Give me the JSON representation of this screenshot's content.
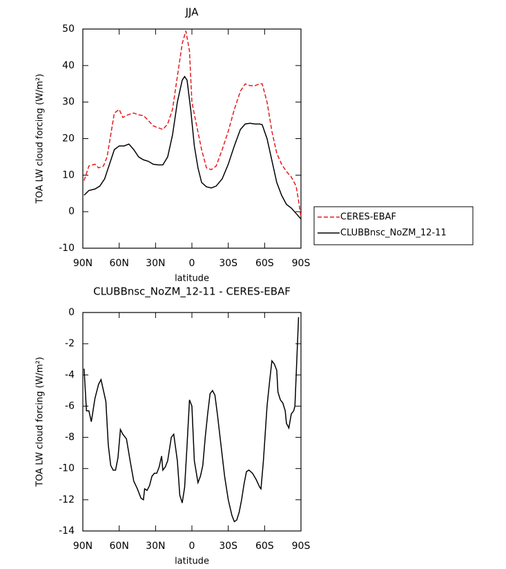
{
  "chart_data": [
    {
      "type": "line",
      "title": "JJA",
      "xlabel": "latitude",
      "ylabel": "TOA LW cloud forcing (W/m²)",
      "xlim": [
        90,
        -90
      ],
      "xticks": [
        {
          "value": 90,
          "label": "90N"
        },
        {
          "value": 60,
          "label": "60N"
        },
        {
          "value": 30,
          "label": "30N"
        },
        0,
        {
          "value": -30,
          "label": "30S"
        },
        {
          "value": -60,
          "label": "60S"
        },
        {
          "value": -90,
          "label": "90S"
        }
      ],
      "ylim": [
        -10,
        50
      ],
      "yticks": [
        -10,
        0,
        10,
        20,
        30,
        40,
        50
      ],
      "legend": "right",
      "series": [
        {
          "name": "CERES-EBAF",
          "color": "#e31a1c",
          "dash": "dashed",
          "x": [
            89,
            85,
            80,
            77,
            73,
            70,
            67,
            64,
            60,
            57,
            53,
            48,
            44,
            40,
            36,
            32,
            28,
            24,
            20,
            16,
            12,
            8,
            5,
            2,
            0,
            -3,
            -8,
            -12,
            -16,
            -20,
            -25,
            -30,
            -35,
            -40,
            -44,
            -48,
            -52,
            -56,
            -58,
            -62,
            -66,
            -70,
            -74,
            -78,
            -82,
            -86,
            -88,
            -90
          ],
          "values": [
            8.5,
            12.5,
            13,
            12,
            12.5,
            15,
            21,
            27,
            28,
            25.8,
            26.5,
            27,
            26.5,
            26.3,
            25,
            23.5,
            23,
            22.5,
            24,
            28,
            37,
            46,
            49.5,
            44,
            30,
            25,
            17,
            12,
            11.5,
            12.5,
            17,
            22,
            28,
            33,
            35,
            34.5,
            34.5,
            35,
            35,
            30,
            22,
            16,
            13,
            11,
            9.5,
            7,
            3,
            -1.5
          ]
        },
        {
          "name": "CLUBBnsc_NoZM_12-11",
          "color": "#000000",
          "dash": "solid",
          "x": [
            89,
            85,
            80,
            76,
            72,
            68,
            64,
            60,
            56,
            52,
            48,
            44,
            40,
            36,
            32,
            28,
            24,
            20,
            16,
            12,
            8,
            6,
            4,
            1,
            -2,
            -5,
            -8,
            -12,
            -16,
            -20,
            -25,
            -30,
            -35,
            -40,
            -44,
            -48,
            -52,
            -56,
            -58,
            -62,
            -66,
            -70,
            -74,
            -78,
            -82,
            -86,
            -90
          ],
          "values": [
            4.5,
            5.8,
            6.2,
            7,
            9,
            13,
            17,
            18,
            18,
            18.5,
            17,
            15,
            14.2,
            13.8,
            13,
            12.8,
            12.8,
            15,
            21,
            30,
            36,
            37,
            36,
            28,
            18,
            12,
            8,
            6.8,
            6.5,
            7,
            9,
            13,
            18,
            22.5,
            24,
            24.2,
            24,
            24,
            23.8,
            20,
            14,
            8,
            4.5,
            2,
            1,
            -0.5,
            -2
          ]
        }
      ]
    },
    {
      "type": "line",
      "title": "CLUBBnsc_NoZM_12-11 - CERES-EBAF",
      "xlabel": "latitude",
      "ylabel": "TOA LW cloud forcing (W/m²)",
      "xlim": [
        90,
        -90
      ],
      "xticks": [
        {
          "value": 90,
          "label": "90N"
        },
        {
          "value": 60,
          "label": "60N"
        },
        {
          "value": 30,
          "label": "30N"
        },
        0,
        {
          "value": -30,
          "label": "30S"
        },
        {
          "value": -60,
          "label": "60S"
        },
        {
          "value": -90,
          "label": "90S"
        }
      ],
      "ylim": [
        -14,
        0
      ],
      "yticks": [
        -14,
        -12,
        -10,
        -8,
        -6,
        -4,
        -2,
        0
      ],
      "series": [
        {
          "color": "#000000",
          "dash": "solid",
          "x": [
            89,
            87,
            85,
            83,
            80,
            77,
            75,
            71,
            69,
            67,
            65,
            63,
            61,
            59,
            57,
            54,
            51,
            48,
            45,
            42,
            40,
            39,
            37,
            35,
            33,
            31,
            29,
            27,
            25,
            24,
            22,
            20,
            17,
            15,
            12,
            10,
            8,
            6,
            4,
            2,
            0,
            -2,
            -5,
            -7,
            -9,
            -11,
            -13,
            -15,
            -17,
            -19,
            -21,
            -24,
            -27,
            -30,
            -33,
            -35,
            -37,
            -39,
            -41,
            -43,
            -45,
            -47,
            -50,
            -53,
            -56,
            -57,
            -59,
            -62,
            -64,
            -66,
            -68,
            -70,
            -71,
            -73,
            -75,
            -77,
            -78,
            -80,
            -82,
            -84,
            -85,
            -88
          ],
          "values": [
            -3.6,
            -6.3,
            -6.3,
            -7,
            -5.5,
            -4.6,
            -4.3,
            -5.7,
            -8.5,
            -9.8,
            -10.1,
            -10.1,
            -9.3,
            -7.5,
            -7.8,
            -8.1,
            -9.5,
            -10.8,
            -11.3,
            -11.9,
            -12,
            -11.3,
            -11.4,
            -11.1,
            -10.5,
            -10.3,
            -10.3,
            -9.9,
            -9.2,
            -10.1,
            -9.9,
            -9.5,
            -8,
            -7.8,
            -9.5,
            -11.7,
            -12.2,
            -11.2,
            -8.5,
            -5.6,
            -6,
            -9.5,
            -10.9,
            -10.5,
            -9.8,
            -8,
            -6.5,
            -5.2,
            -5,
            -5.3,
            -6.5,
            -8.5,
            -10.5,
            -12,
            -13,
            -13.4,
            -13.3,
            -12.8,
            -12,
            -11,
            -10.2,
            -10.1,
            -10.3,
            -10.7,
            -11.2,
            -11.3,
            -9.5,
            -6,
            -4.5,
            -3.1,
            -3.3,
            -3.7,
            -5.1,
            -5.6,
            -5.8,
            -6.3,
            -7.1,
            -7.4,
            -6.5,
            -6.3,
            -6,
            -0.3
          ]
        }
      ]
    }
  ]
}
